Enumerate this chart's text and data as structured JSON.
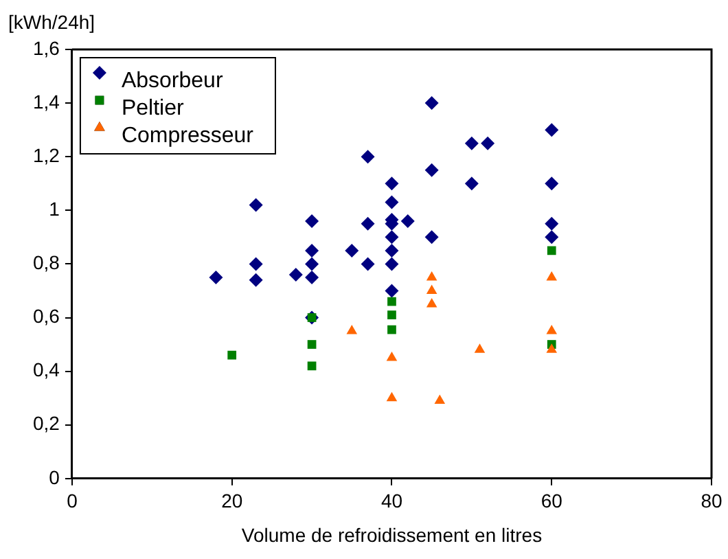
{
  "chart_data": {
    "type": "scatter",
    "ylabel": "[kWh/24h]",
    "xlabel": "Volume de refroidissement en litres",
    "xlim": [
      0,
      80
    ],
    "xticks": [
      0,
      20,
      40,
      60,
      80
    ],
    "ylim": [
      0,
      1.6
    ],
    "yticks": [
      0,
      {
        "value": 0.2,
        "label": "0,2"
      },
      {
        "value": 0.4,
        "label": "0,4"
      },
      {
        "value": 0.6,
        "label": "0,6"
      },
      {
        "value": 0.8,
        "label": "0,8"
      },
      1,
      {
        "value": 1.2,
        "label": "1,2"
      },
      {
        "value": 1.4,
        "label": "1,4"
      },
      {
        "value": 1.6,
        "label": "1,6"
      }
    ],
    "grid": false,
    "legend": "top left",
    "series": [
      {
        "name": "Absorbeur",
        "color": "#000080",
        "marker": "diamond",
        "x": [
          18,
          23,
          23,
          23,
          28,
          30,
          30,
          30,
          30,
          30,
          35,
          37,
          37,
          37,
          40,
          40,
          40,
          40,
          40,
          40,
          40,
          40,
          42,
          45,
          45,
          45,
          50,
          50,
          52,
          60,
          60,
          60,
          60
        ],
        "values": [
          0.75,
          1.02,
          0.8,
          0.74,
          0.76,
          0.96,
          0.85,
          0.8,
          0.75,
          0.6,
          0.85,
          1.2,
          0.95,
          0.8,
          1.1,
          1.03,
          0.965,
          0.95,
          0.9,
          0.85,
          0.8,
          0.7,
          0.96,
          1.4,
          1.15,
          0.9,
          1.25,
          1.1,
          1.25,
          1.3,
          1.1,
          0.95,
          0.9
        ]
      },
      {
        "name": "Peltier",
        "color": "#008000",
        "marker": "square",
        "x": [
          20,
          30,
          30,
          30,
          40,
          40,
          40,
          60,
          60
        ],
        "values": [
          0.46,
          0.6,
          0.5,
          0.42,
          0.66,
          0.61,
          0.555,
          0.85,
          0.5
        ]
      },
      {
        "name": "Compresseur",
        "color": "#ff6600",
        "marker": "triangle",
        "x": [
          35,
          40,
          40,
          45,
          45,
          45,
          46,
          51,
          60,
          60,
          60
        ],
        "values": [
          0.55,
          0.45,
          0.3,
          0.75,
          0.7,
          0.65,
          0.29,
          0.48,
          0.75,
          0.55,
          0.48
        ]
      }
    ]
  }
}
